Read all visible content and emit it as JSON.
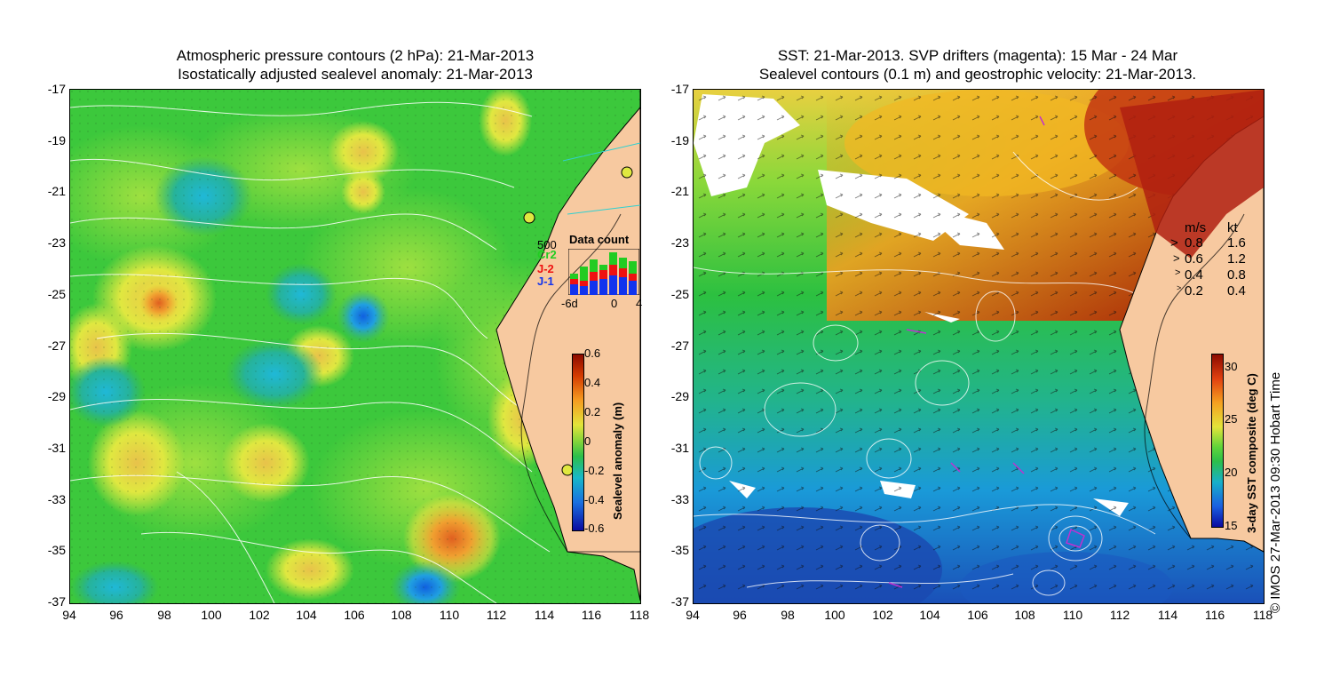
{
  "left_panel": {
    "title_line1": "Atmospheric pressure contours (2 hPa): 21-Mar-2013",
    "title_line2": "Isostatically adjusted sealevel anomaly: 21-Mar-2013",
    "colorbar": {
      "label": "Sealevel anomaly (m)",
      "ticks": [
        "0.6",
        "0.4",
        "0.2",
        "0",
        "-0.2",
        "-0.4",
        "-0.6"
      ]
    },
    "data_count": {
      "title": "Data count",
      "max_label": "500",
      "series": [
        "Cr2",
        "J-2",
        "J-1"
      ],
      "series_colors": [
        "#22cc22",
        "#ee1111",
        "#1133ee"
      ],
      "x_ticks": [
        "-6d",
        "0",
        "4"
      ]
    }
  },
  "right_panel": {
    "title_line1": "SST: 21-Mar-2013. SVP drifters (magenta): 15 Mar - 24 Mar",
    "title_line2": "Sealevel contours (0.1 m) and geostrophic velocity: 21-Mar-2013.",
    "colorbar": {
      "label": "3-day SST composite (deg C)",
      "ticks": [
        "30",
        "25",
        "20",
        "15"
      ]
    },
    "velocity_legend": {
      "header_ms": "m/s",
      "header_kt": "kt",
      "rows": [
        {
          "ms": "0.8",
          "kt": "1.6"
        },
        {
          "ms": "0.6",
          "kt": "1.2"
        },
        {
          "ms": "0.4",
          "kt": "0.8"
        },
        {
          "ms": "0.2",
          "kt": "0.4"
        }
      ]
    }
  },
  "axes": {
    "lat_ticks": [
      "-17",
      "-19",
      "-21",
      "-23",
      "-25",
      "-27",
      "-29",
      "-31",
      "-33",
      "-35",
      "-37"
    ],
    "lon_ticks": [
      "94",
      "96",
      "98",
      "100",
      "102",
      "104",
      "106",
      "108",
      "110",
      "112",
      "114",
      "116",
      "118"
    ]
  },
  "credit": "© IMOS 27-Mar-2013 09:30 Hobart Time",
  "colors": {
    "land": "#f7c9a0",
    "ocean_mid": "#3cc83c",
    "ocean_high": "#d8e83a"
  }
}
